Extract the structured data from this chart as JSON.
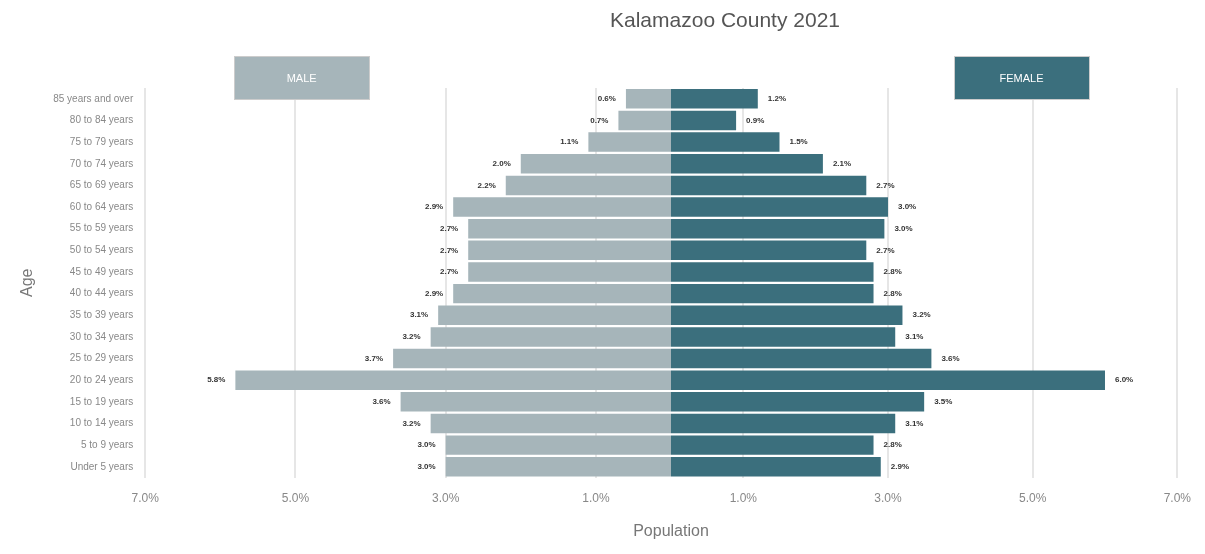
{
  "chart_data": [
    {
      "type": "bar",
      "orientation": "horizontal",
      "ylabel": "Age",
      "subtitle": "MALE",
      "categories": [
        "85 years and over",
        "80 to 84 years",
        "75 to 79 years",
        "70 to 74 years",
        "65 to 69 years",
        "60 to 64 years",
        "55 to 59 years",
        "50 to 54 years",
        "45 to 49 years",
        "40 to 44 years",
        "35 to 39 years",
        "30 to 34 years",
        "25 to 29 years",
        "20 to 24 years",
        "15 to 19 years",
        "10 to 14 years",
        "5 to 9 years",
        "Under 5 years"
      ],
      "series": [
        {
          "color": "#a6b5ba",
          "values": [
            0.6,
            0.7,
            1.1,
            2.0,
            2.2,
            2.9,
            2.7,
            2.7,
            2.7,
            2.9,
            3.1,
            3.2,
            3.7,
            5.8,
            3.6,
            3.2,
            3.0,
            3.0
          ],
          "value_labels": [
            "0.6%",
            "0.7%",
            "1.1%",
            "2.0%",
            "2.2%",
            "2.9%",
            "2.7%",
            "2.7%",
            "2.7%",
            "2.9%",
            "3.1%",
            "3.2%",
            "3.7%",
            "5.8%",
            "3.6%",
            "3.2%",
            "3.0%",
            "3.0%"
          ]
        }
      ],
      "xlim": [
        7,
        0
      ],
      "xticks": [
        {
          "value": 7,
          "label": "7.0%"
        },
        {
          "value": 5,
          "label": "5.0%"
        },
        {
          "value": 3,
          "label": "3.0%"
        },
        {
          "value": 1,
          "label": "1.0%"
        }
      ],
      "grid": "x"
    },
    {
      "type": "bar",
      "orientation": "horizontal",
      "title": "Kalamazoo County 2021",
      "xlabel": "Population",
      "subtitle": "FEMALE",
      "categories": [
        null,
        null,
        null,
        null,
        null,
        null,
        null,
        null,
        null,
        null,
        null,
        null,
        null,
        null,
        null,
        null,
        null,
        null
      ],
      "series": [
        {
          "color": "#3b6f7d",
          "values": [
            1.2,
            0.9,
            1.5,
            2.1,
            2.7,
            3.0,
            2.95,
            2.7,
            2.8,
            2.8,
            3.2,
            3.1,
            3.6,
            6.0,
            3.5,
            3.1,
            2.8,
            2.9
          ],
          "value_labels": [
            "1.2%",
            "0.9%",
            "1.5%",
            "2.1%",
            "2.7%",
            "3.0%",
            "3.0%",
            "2.7%",
            "2.8%",
            "2.8%",
            "3.2%",
            "3.1%",
            "3.6%",
            "6.0%",
            "3.5%",
            "3.1%",
            "2.8%",
            "2.9%"
          ]
        }
      ],
      "xlim": [
        0,
        7
      ],
      "xticks": [
        {
          "value": 1,
          "label": "1.0%"
        },
        {
          "value": 3,
          "label": "3.0%"
        },
        {
          "value": 5,
          "label": "5.0%"
        },
        {
          "value": 7,
          "label": "7.0%"
        }
      ],
      "grid": "x",
      "tick_labels": "x"
    }
  ]
}
